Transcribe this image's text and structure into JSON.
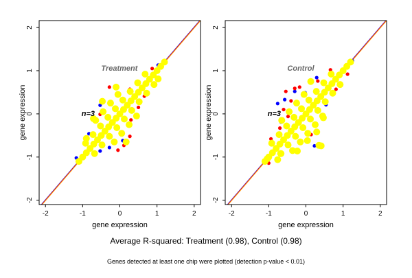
{
  "footer": {
    "summary": "Average R-squared: Treatment (0.98), Control (0.98)",
    "note": "Genes detected at least one chip were plotted (detection p-value < 0.01)"
  },
  "colors": {
    "red": "#ff0000",
    "blue": "#0000ff",
    "yellow": "#ffff00",
    "line_orange": "#ff9900",
    "label_gray": "#666666"
  },
  "chart_data": [
    {
      "type": "scatter",
      "title": "Treatment",
      "annotation": "n=3",
      "xlabel": "gene expression",
      "ylabel": "gene expression",
      "xlim": [
        -2.17,
        2.17
      ],
      "ylim": [
        -2.1,
        2.16
      ],
      "xticks": [
        -2,
        -1,
        0,
        1,
        2
      ],
      "yticks": [
        -2,
        -1,
        0,
        1,
        2
      ],
      "reference_lines": [
        "y=x"
      ],
      "series": [
        {
          "color": "blue",
          "points": [
            [
              -0.53,
              0.2
            ],
            [
              -0.83,
              -0.46
            ],
            [
              -0.28,
              -0.78
            ],
            [
              0.08,
              -0.62
            ],
            [
              -1.17,
              -1.02
            ],
            [
              -0.53,
              -0.86
            ],
            [
              1.03,
              1.13
            ]
          ]
        },
        {
          "color": "red",
          "points": [
            [
              -0.28,
              0.62
            ],
            [
              0.27,
              0.57
            ],
            [
              0.66,
              0.41
            ],
            [
              0.5,
              0.15
            ],
            [
              0.3,
              -0.14
            ],
            [
              0.27,
              -0.52
            ],
            [
              0.11,
              -0.73
            ],
            [
              -0.05,
              -0.84
            ],
            [
              -0.53,
              -0.01
            ],
            [
              -0.65,
              -0.11
            ],
            [
              0.87,
              1.05
            ],
            [
              -0.16,
              -0.65
            ]
          ]
        },
        {
          "color": "yellow",
          "points": [
            [
              -1.1,
              -1.1
            ],
            [
              -1,
              -1
            ],
            [
              -0.9,
              -0.9
            ],
            [
              -0.8,
              -0.8
            ],
            [
              -0.7,
              -0.7
            ],
            [
              -0.6,
              -0.6
            ],
            [
              -0.5,
              -0.5
            ],
            [
              -0.4,
              -0.4
            ],
            [
              -0.3,
              -0.3
            ],
            [
              -0.2,
              -0.2
            ],
            [
              -0.1,
              -0.1
            ],
            [
              0,
              0
            ],
            [
              0.1,
              0.1
            ],
            [
              0.2,
              0.2
            ],
            [
              0.3,
              0.3
            ],
            [
              0.4,
              0.4
            ],
            [
              0.5,
              0.5
            ],
            [
              0.6,
              0.6
            ],
            [
              0.7,
              0.7
            ],
            [
              0.8,
              0.8
            ],
            [
              0.9,
              0.9
            ],
            [
              1,
              1
            ],
            [
              1.1,
              1.1
            ],
            [
              1.2,
              1.2
            ],
            [
              -0.68,
              -0.92
            ],
            [
              -0.92,
              -0.68
            ],
            [
              -0.48,
              -0.72
            ],
            [
              -0.72,
              -0.48
            ],
            [
              -0.28,
              -0.52
            ],
            [
              -0.52,
              -0.28
            ],
            [
              -0.08,
              -0.32
            ],
            [
              -0.32,
              -0.08
            ],
            [
              0.12,
              -0.12
            ],
            [
              -0.12,
              0.12
            ],
            [
              0.32,
              0.08
            ],
            [
              0.08,
              0.32
            ],
            [
              0.52,
              0.28
            ],
            [
              0.28,
              0.52
            ],
            [
              0.72,
              0.48
            ],
            [
              0.48,
              0.72
            ],
            [
              0.92,
              0.68
            ],
            [
              0.68,
              0.92
            ],
            [
              -0.15,
              -0.65
            ],
            [
              -0.65,
              -0.15
            ],
            [
              0.05,
              -0.45
            ],
            [
              -0.45,
              0.05
            ],
            [
              0.25,
              -0.25
            ],
            [
              -0.25,
              0.25
            ],
            [
              0.45,
              -0.05
            ],
            [
              -0.05,
              0.45
            ],
            [
              -0.1,
              0.62
            ],
            [
              -0.47,
              0.29
            ],
            [
              -0.71,
              -0.11
            ],
            [
              0.17,
              -0.65
            ],
            [
              1.03,
              0.81
            ],
            [
              -0.9,
              -0.57
            ]
          ]
        }
      ]
    },
    {
      "type": "scatter",
      "title": "Control",
      "annotation": "n=3",
      "xlabel": "gene expression",
      "ylabel": "gene expression",
      "xlim": [
        -2.17,
        2.17
      ],
      "ylim": [
        -2.1,
        2.16
      ],
      "xticks": [
        -2,
        -1,
        0,
        1,
        2
      ],
      "yticks": [
        -2,
        -1,
        0,
        1,
        2
      ],
      "reference_lines": [
        "y=x"
      ],
      "series": [
        {
          "color": "blue",
          "points": [
            [
              -0.76,
              0.24
            ],
            [
              -0.57,
              0.33
            ],
            [
              -0.3,
              0.52
            ],
            [
              -0.02,
              0.49
            ],
            [
              0.29,
              0.84
            ],
            [
              0.66,
              0.93
            ],
            [
              0.23,
              -0.74
            ],
            [
              -0.67,
              -0.19
            ],
            [
              -0.91,
              -0.65
            ],
            [
              0.54,
              0.21
            ],
            [
              1.25,
              1.23
            ]
          ]
        },
        {
          "color": "red",
          "points": [
            [
              0.66,
              1.02
            ],
            [
              -0.54,
              0.52
            ],
            [
              -0.3,
              0.59
            ],
            [
              -0.17,
              0.62
            ],
            [
              0.32,
              0.76
            ],
            [
              -0.94,
              -0.58
            ],
            [
              0.14,
              -0.48
            ],
            [
              0.81,
              0.57
            ],
            [
              1.12,
              0.92
            ],
            [
              -0.48,
              -0.06
            ],
            [
              -0.7,
              -0.33
            ],
            [
              -1.0,
              -1.14
            ],
            [
              -0.4,
              0.3
            ],
            [
              -0.6,
              0.1
            ]
          ]
        },
        {
          "color": "yellow",
          "points": [
            [
              -1.1,
              -1.1
            ],
            [
              -1,
              -1
            ],
            [
              -0.9,
              -0.9
            ],
            [
              -0.8,
              -0.8
            ],
            [
              -0.7,
              -0.7
            ],
            [
              -0.6,
              -0.6
            ],
            [
              -0.5,
              -0.5
            ],
            [
              -0.4,
              -0.4
            ],
            [
              -0.3,
              -0.3
            ],
            [
              -0.2,
              -0.2
            ],
            [
              -0.1,
              -0.1
            ],
            [
              0,
              0
            ],
            [
              0.1,
              0.1
            ],
            [
              0.2,
              0.2
            ],
            [
              0.3,
              0.3
            ],
            [
              0.4,
              0.4
            ],
            [
              0.5,
              0.5
            ],
            [
              0.6,
              0.6
            ],
            [
              0.7,
              0.7
            ],
            [
              0.8,
              0.8
            ],
            [
              0.9,
              0.9
            ],
            [
              1,
              1
            ],
            [
              1.1,
              1.1
            ],
            [
              1.2,
              1.2
            ],
            [
              -0.68,
              -0.92
            ],
            [
              -0.92,
              -0.68
            ],
            [
              -0.48,
              -0.72
            ],
            [
              -0.72,
              -0.48
            ],
            [
              -0.28,
              -0.52
            ],
            [
              -0.52,
              -0.28
            ],
            [
              -0.08,
              -0.32
            ],
            [
              -0.32,
              -0.08
            ],
            [
              0.12,
              -0.12
            ],
            [
              -0.12,
              0.12
            ],
            [
              0.32,
              0.08
            ],
            [
              0.08,
              0.32
            ],
            [
              0.52,
              0.28
            ],
            [
              0.28,
              0.52
            ],
            [
              0.72,
              0.48
            ],
            [
              0.48,
              0.72
            ],
            [
              0.92,
              0.68
            ],
            [
              0.68,
              0.92
            ],
            [
              -0.15,
              -0.65
            ],
            [
              -0.65,
              -0.15
            ],
            [
              0.05,
              -0.45
            ],
            [
              -0.45,
              0.05
            ],
            [
              0.25,
              -0.25
            ],
            [
              -0.25,
              0.25
            ],
            [
              0.45,
              -0.05
            ],
            [
              -0.05,
              0.45
            ],
            [
              0.29,
              -0.42
            ],
            [
              0.35,
              -0.73
            ],
            [
              0.41,
              -0.74
            ],
            [
              0.04,
              -0.62
            ],
            [
              -0.36,
              -0.85
            ],
            [
              -0.23,
              -0.86
            ],
            [
              -0.67,
              -0.92
            ],
            [
              -0.76,
              -1.06
            ],
            [
              0.47,
              -0.09
            ],
            [
              0.13,
              0.75
            ],
            [
              -1.04,
              -1.04
            ]
          ]
        }
      ]
    }
  ]
}
